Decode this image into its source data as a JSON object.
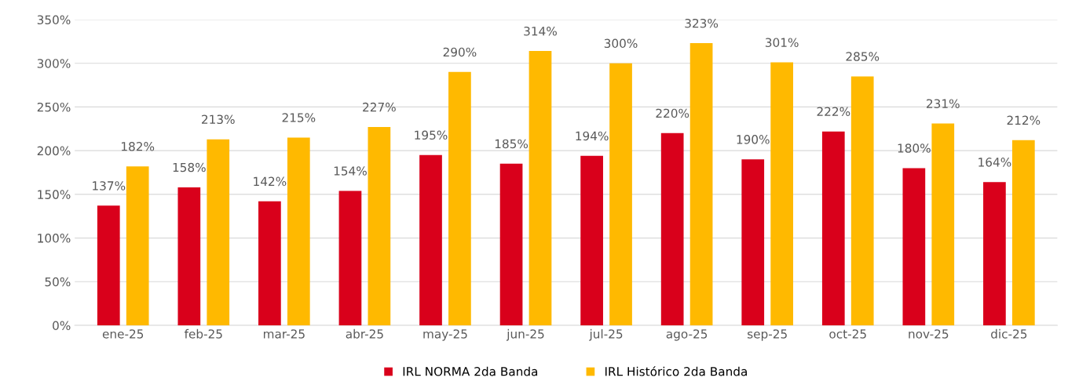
{
  "chart_data": {
    "type": "bar",
    "categories": [
      "ene-25",
      "feb-25",
      "mar-25",
      "abr-25",
      "may-25",
      "jun-25",
      "jul-25",
      "ago-25",
      "sep-25",
      "oct-25",
      "nov-25",
      "dic-25"
    ],
    "series": [
      {
        "name": "IRL NORMA 2da Banda",
        "color": "#d9001b",
        "values": [
          137,
          158,
          142,
          154,
          195,
          185,
          194,
          220,
          190,
          222,
          180,
          164
        ],
        "value_labels": [
          "137%",
          "158%",
          "142%",
          "154%",
          "195%",
          "185%",
          "194%",
          "220%",
          "190%",
          "222%",
          "180%",
          "164%"
        ]
      },
      {
        "name": "IRL Histórico 2da Banda",
        "color": "#ffb900",
        "values": [
          182,
          213,
          215,
          227,
          290,
          314,
          300,
          323,
          301,
          285,
          231,
          212
        ],
        "value_labels": [
          "182%",
          "213%",
          "215%",
          "227%",
          "290%",
          "314%",
          "300%",
          "323%",
          "301%",
          "285%",
          "231%",
          "212%"
        ]
      }
    ],
    "ylim": [
      0,
      350
    ],
    "yticks": [
      {
        "value": 0,
        "label": "0%"
      },
      {
        "value": 50,
        "label": "50%"
      },
      {
        "value": 100,
        "label": "100%"
      },
      {
        "value": 150,
        "label": "150%"
      },
      {
        "value": 200,
        "label": "200%"
      },
      {
        "value": 250,
        "label": "250%"
      },
      {
        "value": 300,
        "label": "300%"
      },
      {
        "value": 350,
        "label": "350%"
      }
    ],
    "grid": "y",
    "legend": "bottom"
  }
}
